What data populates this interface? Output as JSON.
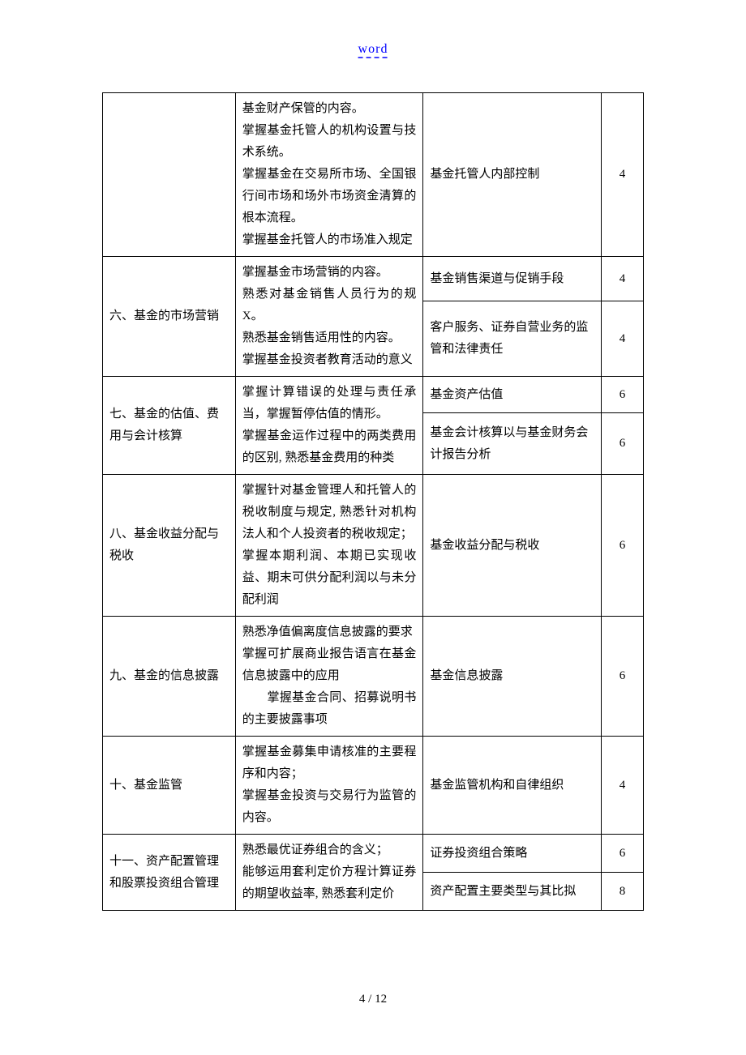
{
  "header": {
    "link": "word"
  },
  "footer": {
    "page": "4 / 12"
  },
  "table": {
    "rows": [
      {
        "col1": "",
        "col2": "基金财产保管的内容。\n掌握基金托管人的机构设置与技术系统。\n掌握基金在交易所市场、全国银行间市场和场外市场资金清算的根本流程。\n掌握基金托管人的市场准入规定",
        "sub": [
          {
            "col3": "基金托管人内部控制",
            "col4": "4"
          }
        ]
      },
      {
        "col1": "六、基金的市场营销",
        "col2": "掌握基金市场营销的内容。\n熟悉对基金销售人员行为的规X。\n熟悉基金销售适用性的内容。\n掌握基金投资者教育活动的意义",
        "sub": [
          {
            "col3": "基金销售渠道与促销手段",
            "col4": "4"
          },
          {
            "col3": "客户服务、证券自营业务的监管和法律责任",
            "col4": "4"
          }
        ]
      },
      {
        "col1": "七、基金的估值、费用与会计核算",
        "col2": "掌握计算错误的处理与责任承当，掌握暂停估值的情形。\n掌握基金运作过程中的两类费用的区别, 熟悉基金费用的种类",
        "sub": [
          {
            "col3": "基金资产估值",
            "col4": "6"
          },
          {
            "col3": "基金会计核算以与基金财务会计报告分析",
            "col4": "6",
            "extra_spacing": true
          }
        ]
      },
      {
        "col1": "八、基金收益分配与税收",
        "col2": "掌握针对基金管理人和托管人的税收制度与规定, 熟悉针对机构法人和个人投资者的税收规定；\n掌握本期利润、本期已实现收益、期末可供分配利润以与未分配利润",
        "sub": [
          {
            "col3": "基金收益分配与税收",
            "col4": "6"
          }
        ]
      },
      {
        "col1": "九、基金的信息披露",
        "col2": "熟悉净值偏离度信息披露的要求\n掌握可扩展商业报告语言在基金信息披露中的应用\n　　掌握基金合同、招募说明书的主要披露事项",
        "sub": [
          {
            "col3": "基金信息披露",
            "col4": "6"
          }
        ]
      },
      {
        "col1": "十、基金监管",
        "col2": "掌握基金募集申请核准的主要程序和内容；\n掌握基金投资与交易行为监管的内容。",
        "sub": [
          {
            "col3": "基金监管机构和自律组织",
            "col4": "4"
          }
        ]
      },
      {
        "col1": "十一、资产配置管理和股票投资组合管理",
        "col2": "熟悉最优证券组合的含义；\n能够运用套利定价方程计算证券的期望收益率, 熟悉套利定价",
        "sub": [
          {
            "col3": "证券投资组合策略",
            "col4": "6"
          },
          {
            "col3": "资产配置主要类型与其比拟",
            "col4": "8"
          }
        ]
      }
    ]
  }
}
